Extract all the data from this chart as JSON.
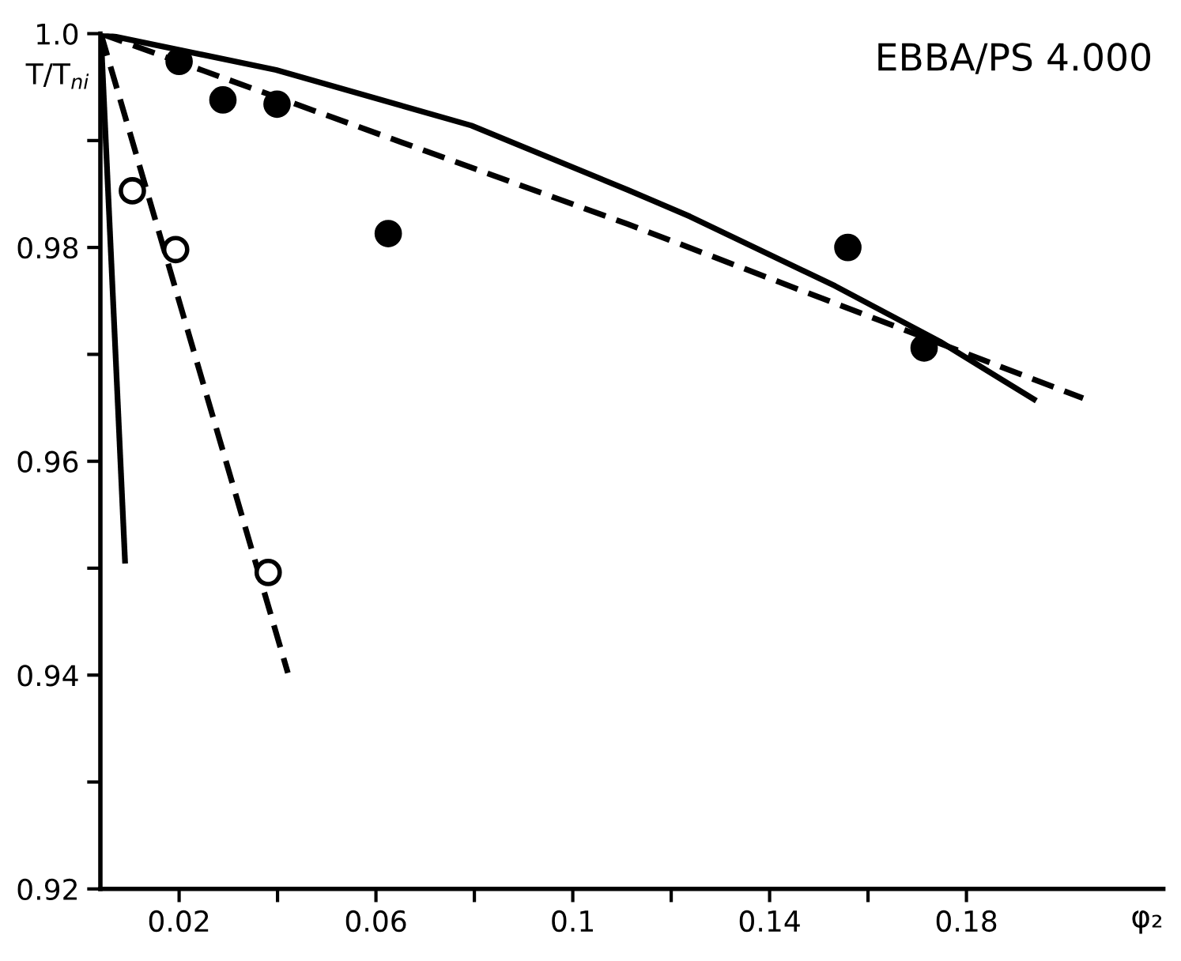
{
  "chart_data": {
    "type": "scatter",
    "ylabel": "T/T$_{ni}$",
    "xlabel": "φ₂",
    "annotations": [
      "EBBA/PS 4.000"
    ],
    "xlim": [
      0.004,
      0.22
    ],
    "ylim": [
      0.92,
      1.0
    ],
    "xticks": [
      0.02,
      {
        "value": 0.04,
        "label": null
      },
      0.06,
      {
        "value": 0.08,
        "label": null
      },
      0.1,
      {
        "value": 0.12,
        "label": null
      },
      0.14,
      {
        "value": 0.16,
        "label": null
      },
      0.18
    ],
    "yticks": [
      0.92,
      {
        "value": 0.93,
        "label": null
      },
      0.94,
      {
        "value": 0.95,
        "label": null
      },
      0.96,
      {
        "value": 0.97,
        "label": null
      },
      0.98,
      {
        "value": 0.99,
        "label": null
      },
      {
        "value": 1.0,
        "label": "1.0"
      }
    ],
    "grid": false,
    "legend": false,
    "series": [
      {
        "marker": "circle",
        "color": "#000000",
        "x": [
          0.02,
          0.0289,
          0.0399,
          0.0625,
          0.1559,
          0.1714
        ],
        "values": [
          0.9974,
          0.9938,
          0.9934,
          0.9813,
          0.98,
          0.9706
        ]
      },
      {
        "marker": "circle",
        "color": "#ffffff",
        "x": [
          0.0105,
          0.0193,
          0.0381
        ],
        "values": [
          0.9853,
          0.9798,
          0.9496
        ]
      },
      {
        "type": "line",
        "line_style": "solid",
        "color": "#000000",
        "x": [
          0.0041,
          0.009
        ],
        "values": [
          1.0,
          0.9507
        ]
      },
      {
        "type": "line",
        "line_style": "dashed",
        "color": "#000000",
        "x": [
          0.0041,
          0.0421
        ],
        "values": [
          1.0,
          0.9402
        ]
      },
      {
        "type": "line",
        "line_style": "solid",
        "color": "#000000",
        "x": [
          0.0041,
          0.0397,
          0.0794,
          0.1111,
          0.1238,
          0.1533,
          0.1746,
          0.1937
        ],
        "values": [
          1.0,
          0.9966,
          0.9914,
          0.9854,
          0.9829,
          0.9764,
          0.9712,
          0.9658
        ]
      },
      {
        "type": "line",
        "line_style": "dashed",
        "color": "#000000",
        "x": [
          0.0041,
          0.1111,
          0.2037
        ],
        "values": [
          1.0,
          0.9822,
          0.9659
        ]
      }
    ]
  }
}
